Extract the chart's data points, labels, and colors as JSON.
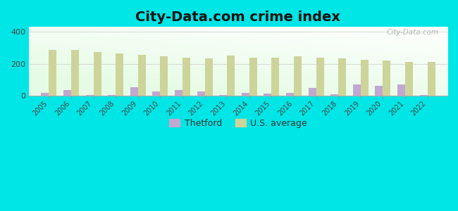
{
  "title": "City-Data.com crime index",
  "years": [
    2005,
    2006,
    2007,
    2008,
    2009,
    2010,
    2011,
    2012,
    2013,
    2014,
    2015,
    2016,
    2017,
    2018,
    2019,
    2020,
    2021,
    2022
  ],
  "thetford": [
    20,
    35,
    5,
    4,
    55,
    28,
    38,
    28,
    6,
    18,
    16,
    18,
    48,
    8,
    72,
    62,
    72,
    4
  ],
  "us_average": [
    285,
    285,
    275,
    263,
    255,
    248,
    238,
    236,
    250,
    240,
    240,
    246,
    238,
    236,
    226,
    220,
    210,
    213
  ],
  "thetford_color": "#c0a8d0",
  "us_avg_color": "#cdd49a",
  "background_color": "#00e5e5",
  "ylim": [
    0,
    430
  ],
  "yticks": [
    0,
    200,
    400
  ],
  "bar_width": 0.35,
  "watermark": "City-Data.com",
  "legend_thetford": "Thetford",
  "legend_us": "U.S. average",
  "title_fontsize": 14
}
